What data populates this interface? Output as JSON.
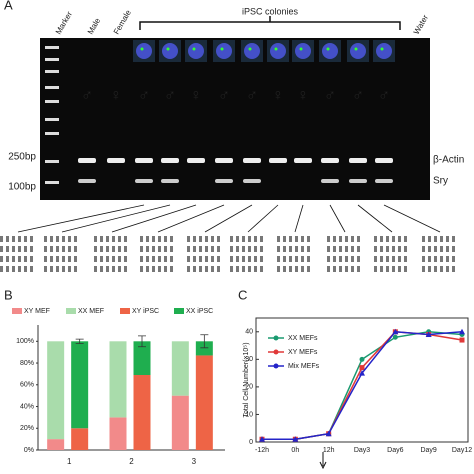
{
  "panel_a": {
    "label": "A",
    "lanes": [
      "Marker",
      "Male",
      "Female"
    ],
    "group": "iPSC colonies",
    "water": "Water",
    "markers": [
      "250bp",
      "100bp"
    ],
    "bands": [
      "β-Actin",
      "Sry"
    ],
    "sexes": [
      {
        "symbol": "♂",
        "color": "#e02828"
      },
      {
        "symbol": "♀",
        "color": "#1fa84a"
      },
      {
        "symbol": "♂",
        "color": "#e02828"
      },
      {
        "symbol": "♂",
        "color": "#e02828"
      },
      {
        "symbol": "♀",
        "color": "#1fa84a"
      },
      {
        "symbol": "♂",
        "color": "#e02828"
      },
      {
        "symbol": "♂",
        "color": "#e02828"
      },
      {
        "symbol": "♀",
        "color": "#1fa84a"
      },
      {
        "symbol": "♀",
        "color": "#1fa84a"
      },
      {
        "symbol": "♂",
        "color": "#e02828"
      },
      {
        "symbol": "♂",
        "color": "#e02828"
      },
      {
        "symbol": "♂",
        "color": "#e02828"
      }
    ]
  },
  "chart_data": [
    {
      "type": "stacked-bar",
      "label": "B",
      "categories": [
        "1",
        "2",
        "3"
      ],
      "stacks": [
        [
          {
            "name": "XY MEF",
            "color": "#f28a8a",
            "values": [
              10,
              30,
              50
            ]
          },
          {
            "name": "XX MEF",
            "color": "#a9dcab",
            "values": [
              90,
              70,
              50
            ]
          }
        ],
        [
          {
            "name": "XY iPSC",
            "color": "#ee6446",
            "values": [
              20,
              69,
              87
            ]
          },
          {
            "name": "XX iPSC",
            "color": "#1fae4f",
            "values": [
              80,
              31,
              13
            ],
            "errors": [
              2,
              5,
              6
            ]
          }
        ]
      ],
      "ylim": [
        0,
        115
      ],
      "yticks": [
        {
          "value": 0,
          "label": "0%"
        },
        {
          "value": 20,
          "label": "20%"
        },
        {
          "value": 40,
          "label": "40%"
        },
        {
          "value": 60,
          "label": "60%"
        },
        {
          "value": 80,
          "label": "80%"
        },
        {
          "value": 100,
          "label": "100%"
        }
      ]
    },
    {
      "type": "line",
      "label": "C",
      "y_label": "Total Cell Number(×10⁵)",
      "categories": [
        "-12h",
        "0h",
        "12h",
        "Day3",
        "Day6",
        "Day9",
        "Day12"
      ],
      "series": [
        {
          "name": "XX MEFs",
          "color": "#1a9a70",
          "values": [
            1,
            1,
            3,
            30,
            38,
            40,
            39
          ]
        },
        {
          "name": "XY MEFs",
          "color": "#e03838",
          "values": [
            1,
            1,
            3,
            27,
            40,
            39,
            37
          ]
        },
        {
          "name": "Mix MEFs",
          "color": "#2424c8",
          "values": [
            1,
            1,
            3,
            25,
            40,
            39,
            40
          ]
        }
      ],
      "ylim": [
        0,
        45
      ],
      "yticks": [
        0,
        10,
        20,
        30,
        40
      ]
    }
  ]
}
